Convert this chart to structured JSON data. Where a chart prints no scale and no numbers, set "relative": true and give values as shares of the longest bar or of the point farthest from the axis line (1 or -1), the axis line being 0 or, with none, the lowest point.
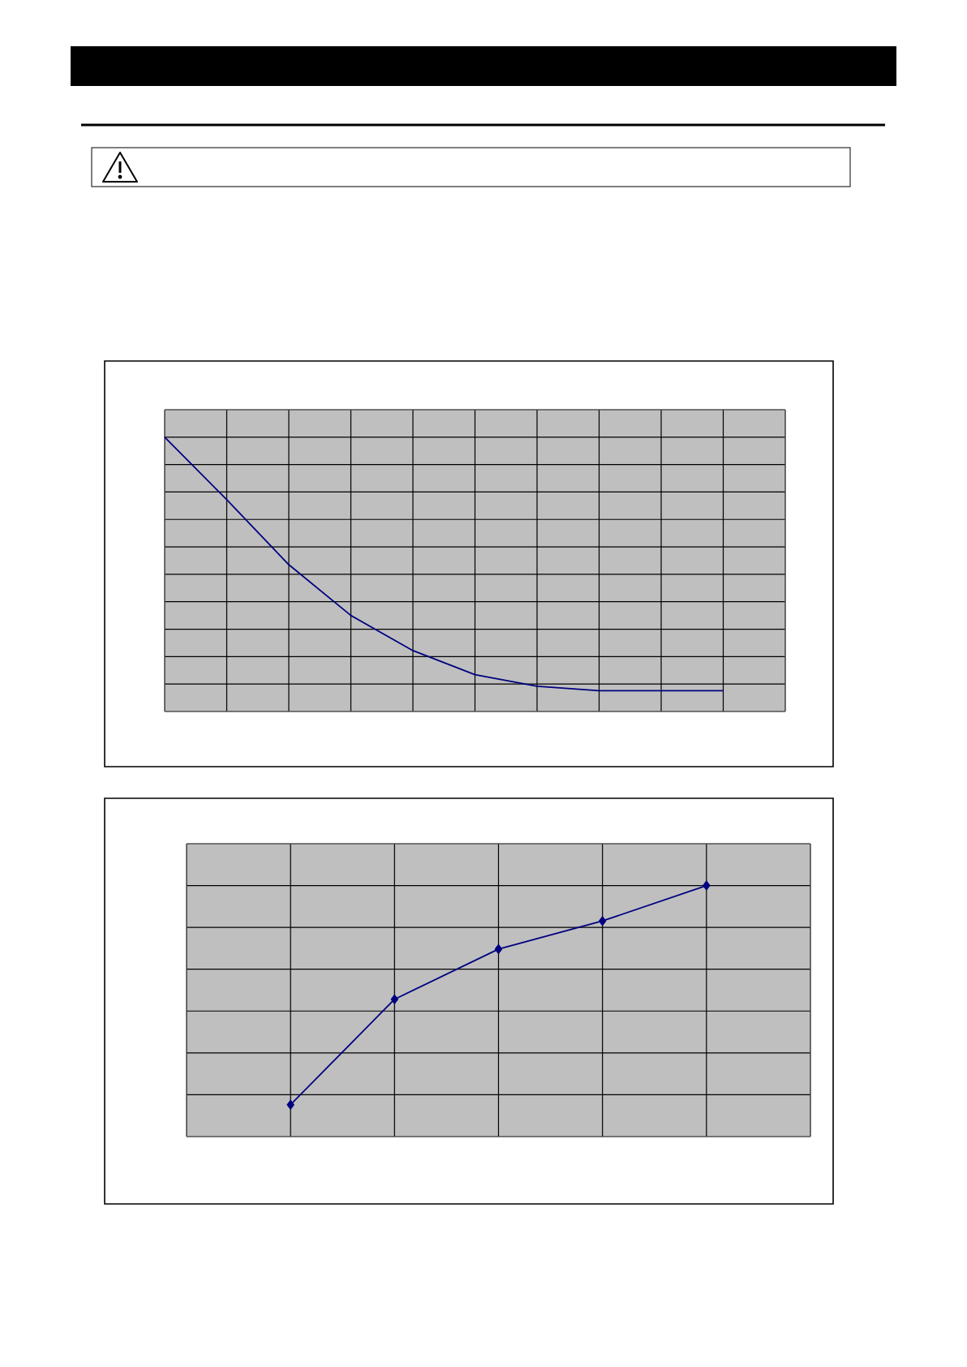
{
  "chart_data": [
    {
      "type": "line",
      "relative": true,
      "grid": true,
      "marker": "none",
      "categories": [
        null,
        null,
        null,
        null,
        null,
        null,
        null,
        null,
        null,
        null,
        null
      ],
      "series": [
        {
          "color": "#000080",
          "values": [
            1,
            0.772,
            0.535,
            0.35,
            0.222,
            0.134,
            0.092,
            0.076,
            0.076,
            0.076,
            null
          ]
        }
      ]
    },
    {
      "type": "line",
      "relative": true,
      "grid": true,
      "marker": "diamond",
      "categories": [
        null,
        null,
        null,
        null,
        null,
        null,
        null
      ],
      "series": [
        {
          "color": "#000080",
          "values": [
            null,
            0.127,
            0.547,
            0.747,
            0.859,
            1,
            null
          ]
        }
      ]
    }
  ]
}
